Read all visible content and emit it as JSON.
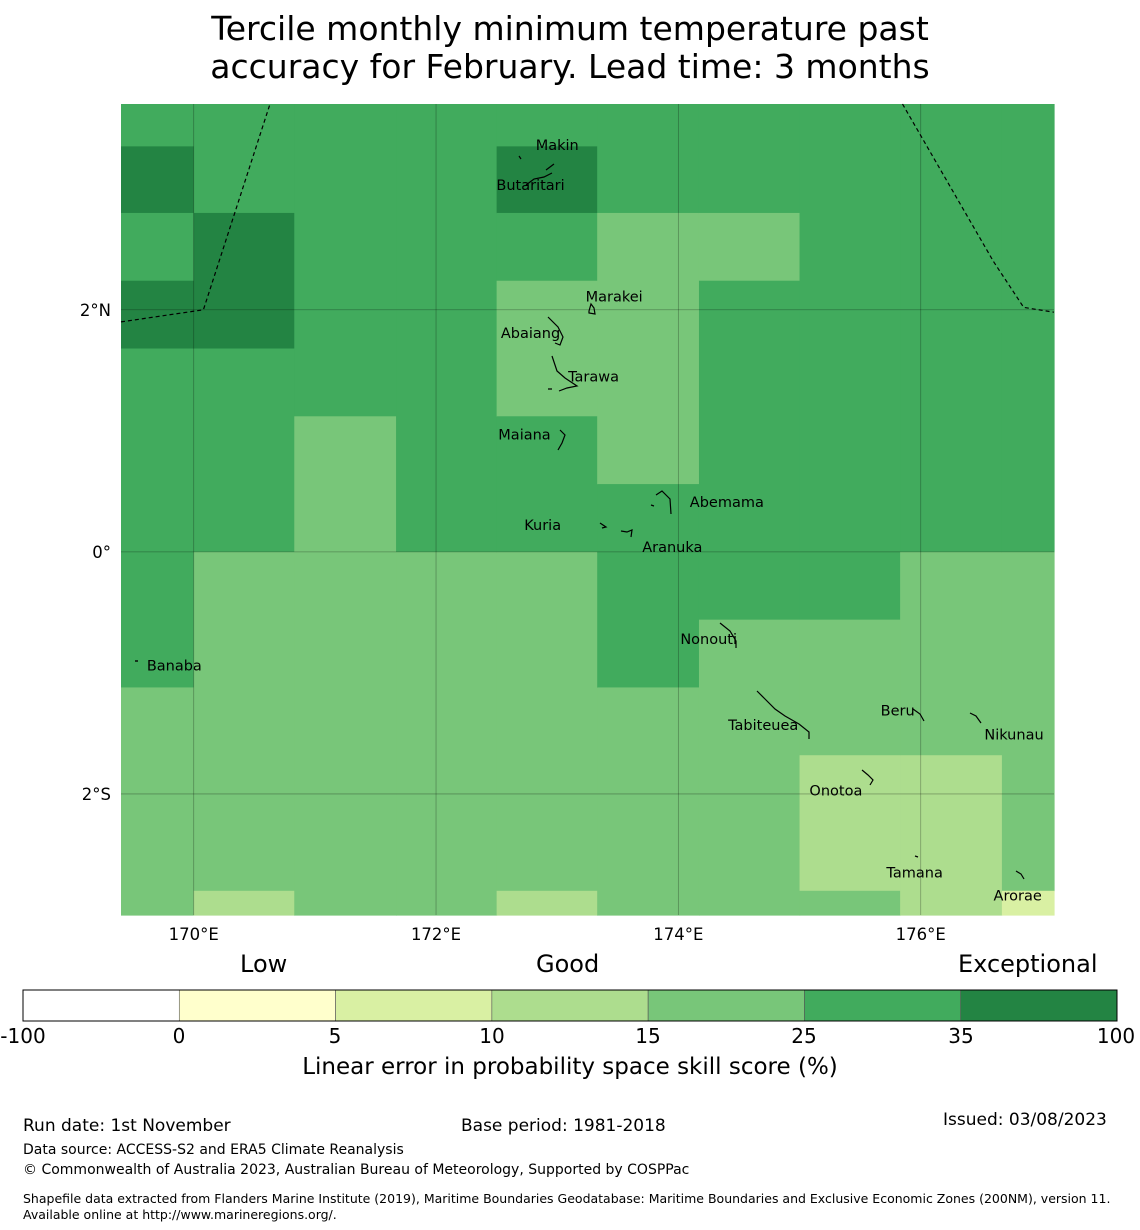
{
  "title": {
    "line1": "Tercile monthly minimum temperature past",
    "line2": "accuracy for February. Lead time: 3 months"
  },
  "map": {
    "lon_range": [
      169.4,
      177.1
    ],
    "lat_range": [
      -3.0,
      3.7
    ],
    "lon_ticks": [
      {
        "value": 170,
        "label": "170°E"
      },
      {
        "value": 172,
        "label": "172°E"
      },
      {
        "value": 174,
        "label": "174°E"
      },
      {
        "value": 176,
        "label": "176°E"
      }
    ],
    "lat_ticks": [
      {
        "value": 2,
        "label": "2°N"
      },
      {
        "value": 0,
        "label": "0°"
      },
      {
        "value": -2,
        "label": "2°S"
      }
    ],
    "grid_cells": [
      {
        "lon": [
          169.4,
          170.0
        ],
        "lat": [
          3.35,
          3.7
        ],
        "score": 30
      },
      {
        "lon": [
          169.4,
          170.0
        ],
        "lat": [
          2.8,
          3.35
        ],
        "score": 40
      },
      {
        "lon": [
          169.4,
          170.0
        ],
        "lat": [
          2.24,
          2.8
        ],
        "score": 30
      },
      {
        "lon": [
          169.4,
          170.0
        ],
        "lat": [
          1.68,
          2.24
        ],
        "score": 40
      },
      {
        "lon": [
          169.4,
          170.0
        ],
        "lat": [
          0.0,
          1.68
        ],
        "score": 30
      },
      {
        "lon": [
          169.4,
          170.0
        ],
        "lat": [
          -1.12,
          0.0
        ],
        "score": 30
      },
      {
        "lon": [
          169.4,
          170.0
        ],
        "lat": [
          -3.0,
          -1.12
        ],
        "score": 20
      },
      {
        "lon": [
          170.0,
          170.83
        ],
        "lat": [
          2.8,
          3.7
        ],
        "score": 30
      },
      {
        "lon": [
          170.0,
          170.83
        ],
        "lat": [
          1.68,
          2.8
        ],
        "score": 40
      },
      {
        "lon": [
          170.0,
          170.83
        ],
        "lat": [
          0.0,
          1.68
        ],
        "score": 30
      },
      {
        "lon": [
          170.0,
          170.83
        ],
        "lat": [
          -2.8,
          0.0
        ],
        "score": 20
      },
      {
        "lon": [
          170.0,
          170.83
        ],
        "lat": [
          -3.0,
          -2.8
        ],
        "score": 12
      },
      {
        "lon": [
          170.83,
          171.67
        ],
        "lat": [
          1.12,
          3.7
        ],
        "score": 30
      },
      {
        "lon": [
          170.83,
          171.67
        ],
        "lat": [
          0.0,
          1.12
        ],
        "score": 20
      },
      {
        "lon": [
          170.83,
          171.67
        ],
        "lat": [
          -3.0,
          0.0
        ],
        "score": 20
      },
      {
        "lon": [
          171.67,
          172.5
        ],
        "lat": [
          0.0,
          3.7
        ],
        "score": 30
      },
      {
        "lon": [
          171.67,
          172.5
        ],
        "lat": [
          -3.0,
          0.0
        ],
        "score": 20
      },
      {
        "lon": [
          172.5,
          173.33
        ],
        "lat": [
          3.35,
          3.7
        ],
        "score": 30
      },
      {
        "lon": [
          172.5,
          173.33
        ],
        "lat": [
          2.8,
          3.35
        ],
        "score": 40
      },
      {
        "lon": [
          172.5,
          173.33
        ],
        "lat": [
          2.24,
          2.8
        ],
        "score": 30
      },
      {
        "lon": [
          172.5,
          173.33
        ],
        "lat": [
          1.12,
          2.24
        ],
        "score": 20
      },
      {
        "lon": [
          172.5,
          173.33
        ],
        "lat": [
          0.0,
          1.12
        ],
        "score": 30
      },
      {
        "lon": [
          172.5,
          173.33
        ],
        "lat": [
          -2.8,
          0.0
        ],
        "score": 20
      },
      {
        "lon": [
          172.5,
          173.33
        ],
        "lat": [
          -3.0,
          -2.8
        ],
        "score": 12
      },
      {
        "lon": [
          173.33,
          174.17
        ],
        "lat": [
          2.8,
          3.7
        ],
        "score": 30
      },
      {
        "lon": [
          173.33,
          174.17
        ],
        "lat": [
          0.56,
          2.8
        ],
        "score": 20
      },
      {
        "lon": [
          173.33,
          174.17
        ],
        "lat": [
          0.0,
          0.56
        ],
        "score": 30
      },
      {
        "lon": [
          173.33,
          174.17
        ],
        "lat": [
          -1.12,
          0.0
        ],
        "score": 30
      },
      {
        "lon": [
          173.33,
          174.17
        ],
        "lat": [
          -3.0,
          -1.12
        ],
        "score": 20
      },
      {
        "lon": [
          174.17,
          175.0
        ],
        "lat": [
          2.8,
          3.7
        ],
        "score": 30
      },
      {
        "lon": [
          174.17,
          175.0
        ],
        "lat": [
          2.24,
          2.8
        ],
        "score": 20
      },
      {
        "lon": [
          174.17,
          175.0
        ],
        "lat": [
          0.0,
          2.24
        ],
        "score": 30
      },
      {
        "lon": [
          174.17,
          175.0
        ],
        "lat": [
          -0.56,
          0.0
        ],
        "score": 30
      },
      {
        "lon": [
          174.17,
          175.0
        ],
        "lat": [
          -3.0,
          -0.56
        ],
        "score": 20
      },
      {
        "lon": [
          175.0,
          175.83
        ],
        "lat": [
          0.0,
          3.7
        ],
        "score": 30
      },
      {
        "lon": [
          175.0,
          175.83
        ],
        "lat": [
          -0.56,
          0.0
        ],
        "score": 30
      },
      {
        "lon": [
          175.0,
          175.83
        ],
        "lat": [
          -1.68,
          -0.56
        ],
        "score": 20
      },
      {
        "lon": [
          175.0,
          175.83
        ],
        "lat": [
          -2.8,
          -1.68
        ],
        "score": 12
      },
      {
        "lon": [
          175.0,
          175.83
        ],
        "lat": [
          -3.0,
          -2.8
        ],
        "score": 20
      },
      {
        "lon": [
          175.83,
          176.67
        ],
        "lat": [
          0.0,
          3.7
        ],
        "score": 30
      },
      {
        "lon": [
          175.83,
          176.67
        ],
        "lat": [
          -1.68,
          0.0
        ],
        "score": 20
      },
      {
        "lon": [
          175.83,
          176.67
        ],
        "lat": [
          -3.0,
          -1.68
        ],
        "score": 12
      },
      {
        "lon": [
          176.67,
          177.1
        ],
        "lat": [
          0.0,
          3.7
        ],
        "score": 30
      },
      {
        "lon": [
          176.67,
          177.1
        ],
        "lat": [
          -2.8,
          0.0
        ],
        "score": 20
      },
      {
        "lon": [
          176.67,
          177.1
        ],
        "lat": [
          -3.0,
          -2.8
        ],
        "score": 7
      }
    ],
    "boundary_lines": [
      [
        [
          169.4,
          1.9
        ],
        [
          170.08,
          2.0
        ],
        [
          170.63,
          3.7
        ]
      ],
      [
        [
          175.85,
          3.7
        ],
        [
          176.6,
          2.4
        ],
        [
          176.85,
          2.02
        ],
        [
          177.1,
          1.98
        ]
      ]
    ],
    "places": [
      {
        "name": "Makin",
        "lon": 173.0,
        "lat": 3.36
      },
      {
        "name": "Butaritari",
        "lon": 172.78,
        "lat": 3.03
      },
      {
        "name": "Marakei",
        "lon": 173.47,
        "lat": 2.11
      },
      {
        "name": "Abaiang",
        "lon": 172.78,
        "lat": 1.81
      },
      {
        "name": "Tarawa",
        "lon": 173.3,
        "lat": 1.45
      },
      {
        "name": "Maiana",
        "lon": 172.73,
        "lat": 0.97
      },
      {
        "name": "Abemama",
        "lon": 174.4,
        "lat": 0.41
      },
      {
        "name": "Kuria",
        "lon": 172.88,
        "lat": 0.22
      },
      {
        "name": "Aranuka",
        "lon": 173.95,
        "lat": 0.04
      },
      {
        "name": "Nonouti",
        "lon": 174.25,
        "lat": -0.72
      },
      {
        "name": "Banaba",
        "lon": 169.84,
        "lat": -0.94
      },
      {
        "name": "Beru",
        "lon": 175.81,
        "lat": -1.31
      },
      {
        "name": "Tabiteuea",
        "lon": 174.7,
        "lat": -1.43
      },
      {
        "name": "Nikunau",
        "lon": 176.77,
        "lat": -1.51
      },
      {
        "name": "Onotoa",
        "lon": 175.3,
        "lat": -1.97
      },
      {
        "name": "Tamana",
        "lon": 175.95,
        "lat": -2.65
      },
      {
        "name": "Arorae",
        "lon": 176.8,
        "lat": -2.84
      }
    ]
  },
  "colorbar": {
    "labels": {
      "low": "Low",
      "good": "Good",
      "exceptional": "Exceptional"
    },
    "ticks": [
      "-100",
      "0",
      "5",
      "10",
      "15",
      "25",
      "35",
      "100"
    ],
    "bounds": [
      -100,
      0,
      5,
      10,
      15,
      25,
      35,
      100
    ],
    "colors": [
      "#ffffff",
      "#ffffcc",
      "#d9f0a3",
      "#addd8e",
      "#78c679",
      "#41ab5d",
      "#238443"
    ],
    "title": "Linear error in probability space skill score (%)"
  },
  "footer": {
    "run_date": "Run date: 1st November",
    "base_period": "Base period: 1981-2018",
    "issued": "Issued: 03/08/2023",
    "data_source": "Data source: ACCESS-S2 and ERA5 Climate Reanalysis",
    "copyright": "© Commonwealth of Australia 2023, Australian Bureau of Meteorology, Supported by COSPPac",
    "shapefile": "Shapefile data extracted from Flanders Marine Institute (2019), Maritime Boundaries Geodatabase: Maritime Boundaries and Exclusive Economic Zones (200NM), version 11. Available online at http://www.marineregions.org/."
  }
}
